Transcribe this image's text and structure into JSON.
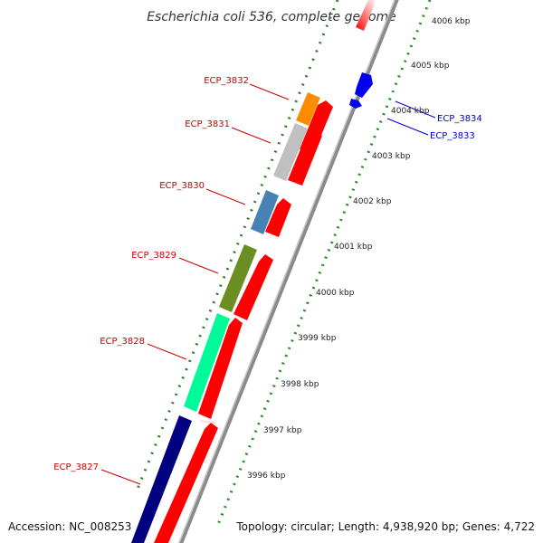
{
  "title": "Escherichia coli 536, complete genome",
  "footer": {
    "accession": "Accession: NC_008253",
    "summary": "Topology: circular; Length: 4,938,920 bp; Genes: 4,722"
  },
  "colors": {
    "background": "#ffffff",
    "backbone": "#8a8a8a",
    "ruler_major": "#2e7d2e",
    "ruler_minor": "#1f8f1f",
    "label_reverse": "#cc0000",
    "label_forward": "#0000cc",
    "forward_gene": "#0000ee",
    "cds_reverse": "#ff0000"
  },
  "ruler_labels": [
    "4006 kbp",
    "4005 kbp",
    "4004 kbp",
    "4003 kbp",
    "4002 kbp",
    "4001 kbp",
    "4000 kbp",
    "3999 kbp",
    "3998 kbp",
    "3997 kbp",
    "3996 kbp"
  ],
  "gene_labels": {
    "reverse": [
      "ECP_3832",
      "ECP_3831",
      "ECP_3830",
      "ECP_3829",
      "ECP_3828",
      "ECP_3827"
    ],
    "forward": [
      "ECP_3834",
      "ECP_3833"
    ]
  },
  "cog_colors": [
    "#ff8c00",
    "#c0c0c0",
    "#4682b4",
    "#6b8e23",
    "#00fa9a",
    "#000080"
  ]
}
